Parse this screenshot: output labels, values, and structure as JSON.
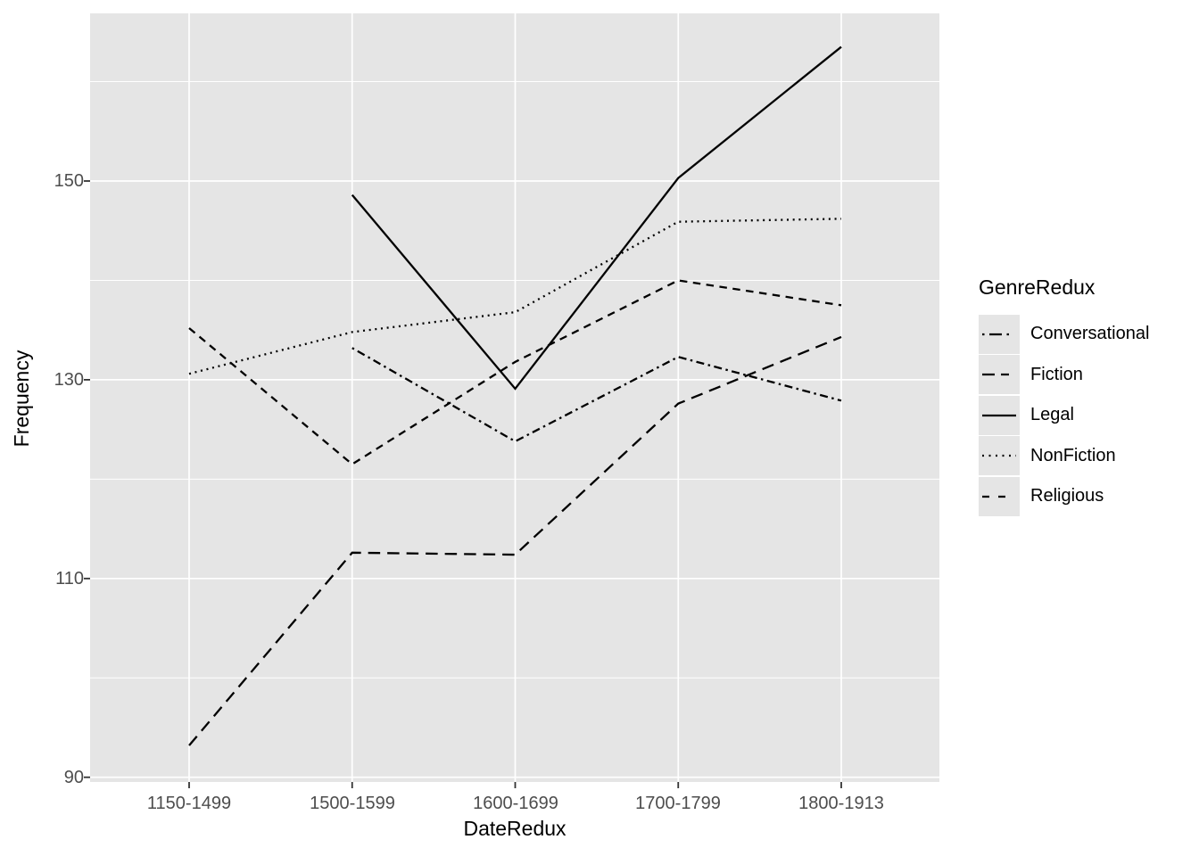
{
  "axes": {
    "x_title": "DateRedux",
    "y_title": "Frequency",
    "x_ticks": [
      "1150-1499",
      "1500-1599",
      "1600-1699",
      "1700-1799",
      "1800-1913"
    ],
    "y_ticks": [
      "90",
      "110",
      "130",
      "150"
    ]
  },
  "legend": {
    "title": "GenreRedux",
    "items": [
      {
        "label": "Conversational",
        "linetype": "twodash"
      },
      {
        "label": "Fiction",
        "linetype": "longdash"
      },
      {
        "label": "Legal",
        "linetype": "solid"
      },
      {
        "label": "NonFiction",
        "linetype": "dotted"
      },
      {
        "label": "Religious",
        "linetype": "dashed"
      }
    ]
  },
  "chart_data": {
    "type": "line",
    "title": "",
    "xlabel": "DateRedux",
    "ylabel": "Frequency",
    "categories": [
      "1150-1499",
      "1500-1599",
      "1600-1699",
      "1700-1799",
      "1800-1913"
    ],
    "series": [
      {
        "name": "Conversational",
        "linetype": "twodash",
        "values": [
          null,
          133.2,
          123.8,
          132.3,
          127.9
        ]
      },
      {
        "name": "Fiction",
        "linetype": "longdash",
        "values": [
          93.2,
          112.6,
          112.4,
          127.6,
          134.3
        ]
      },
      {
        "name": "Legal",
        "linetype": "solid",
        "values": [
          null,
          148.6,
          129.1,
          150.3,
          163.5
        ]
      },
      {
        "name": "NonFiction",
        "linetype": "dotted",
        "values": [
          130.6,
          134.8,
          136.8,
          145.9,
          146.2
        ]
      },
      {
        "name": "Religious",
        "linetype": "dashed",
        "values": [
          135.2,
          121.5,
          131.8,
          140.0,
          137.5
        ]
      }
    ],
    "ylim": [
      89.5,
      166.9
    ],
    "y_major_gridlines": [
      90,
      110,
      130,
      150
    ],
    "y_minor_gridlines": [
      100,
      120,
      140,
      160
    ],
    "grid": "on",
    "legend_position": "right",
    "colors": {
      "line": "#000000",
      "panel_bg": "#E5E5E5",
      "gridline": "#FFFFFF",
      "axis_text": "#4D4D4D",
      "tick_mark": "#333333",
      "legend_key_bg": "#E5E5E5"
    }
  }
}
